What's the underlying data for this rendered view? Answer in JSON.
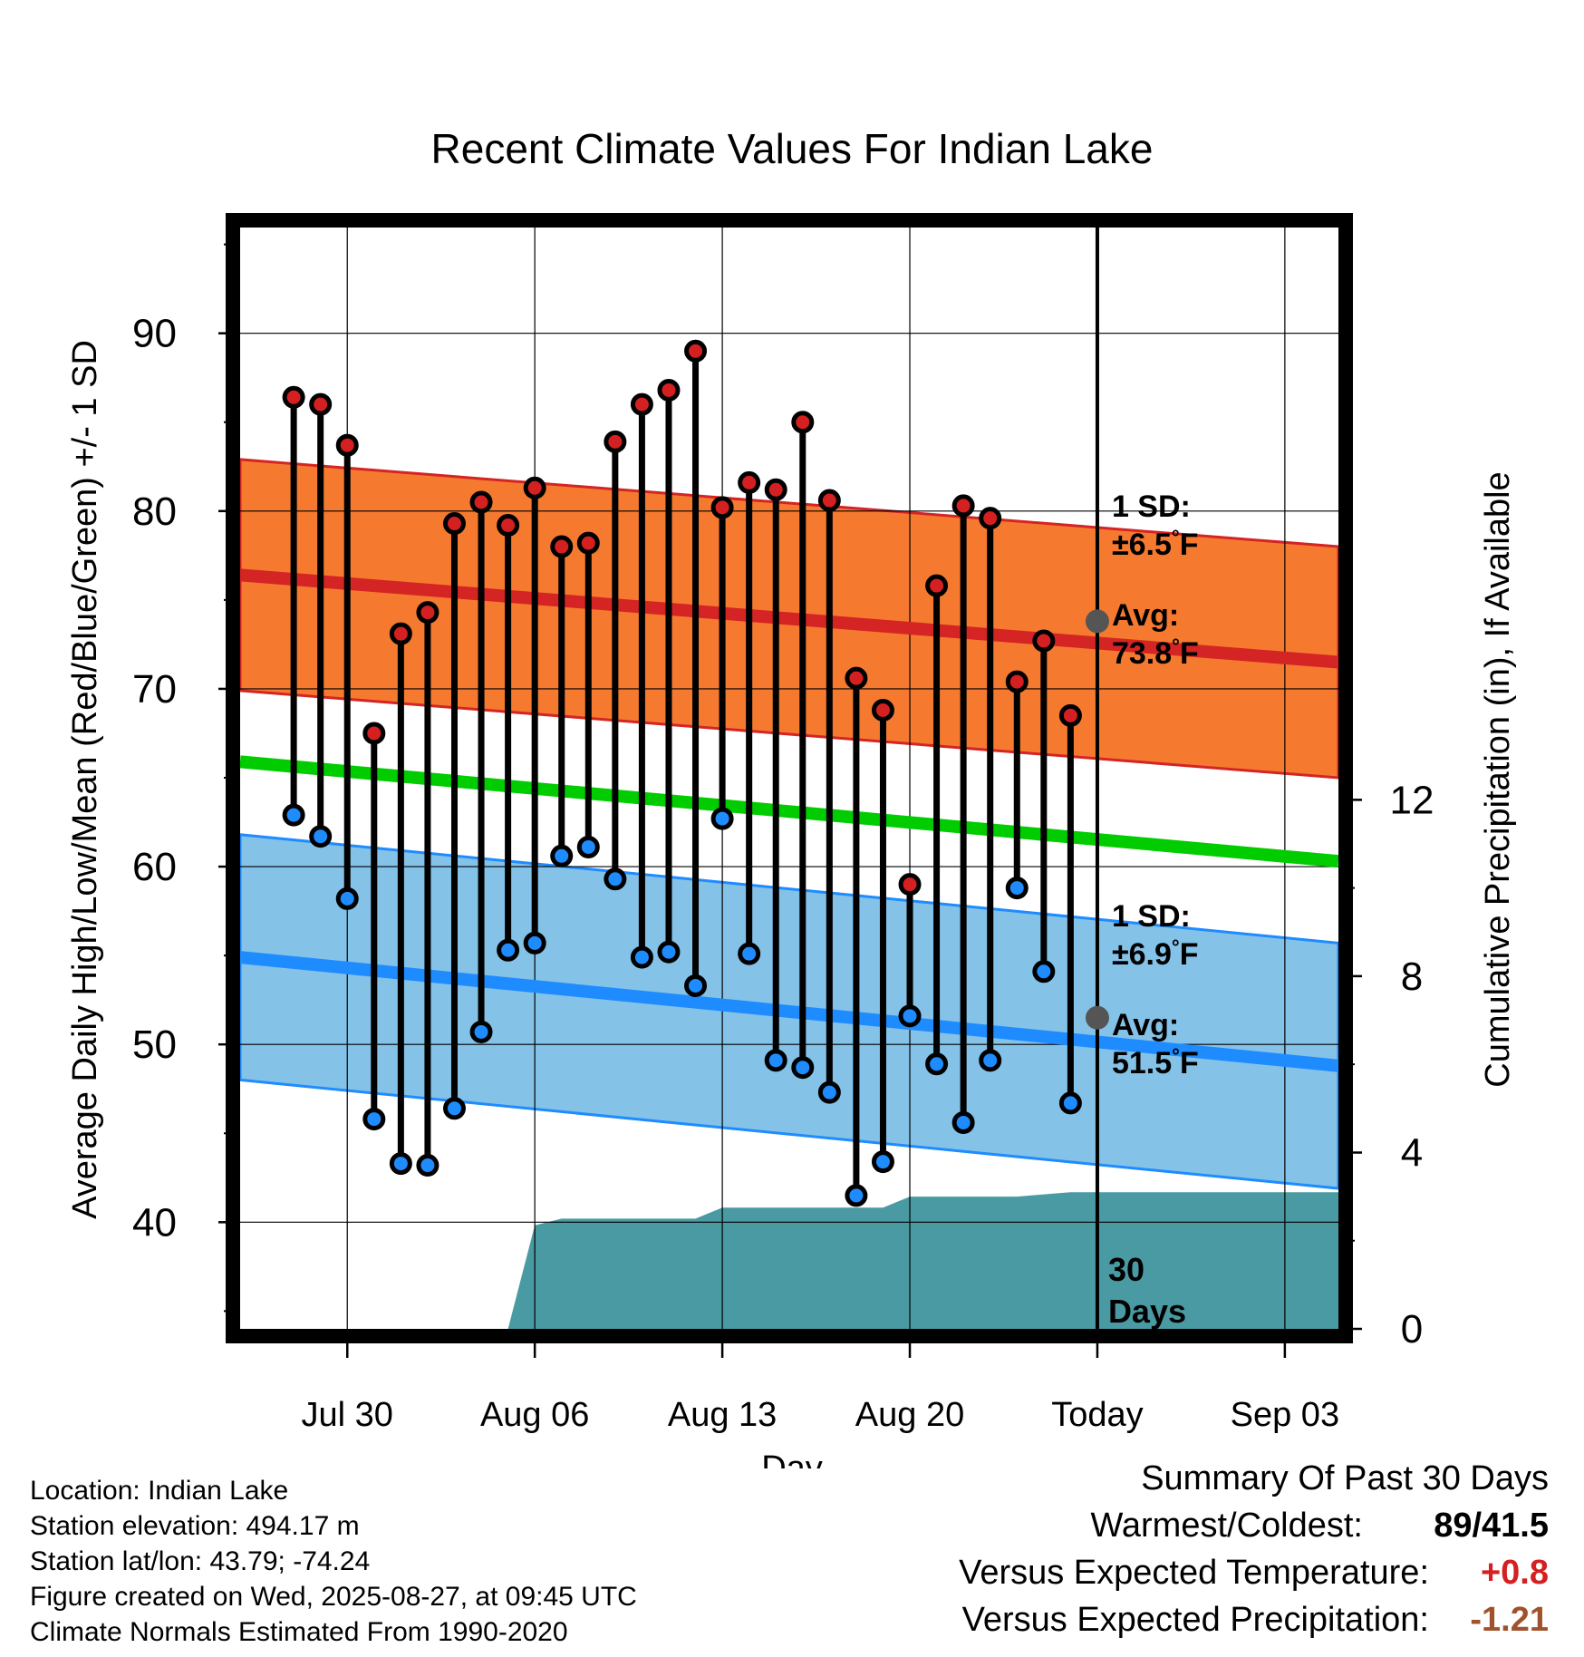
{
  "chart_data": {
    "type": "line",
    "title": "Recent Climate Values For Indian Lake",
    "xlabel": "Day",
    "ylabel": "Average Daily High/Low/Mean (Red/Blue/Green) +/- 1 SD",
    "y2label": "Cumulative Precipitation (in), If Available",
    "ylim": [
      34,
      96
    ],
    "y2lim": [
      0,
      25
    ],
    "xlim": [
      "Jul 26",
      "Sep 05"
    ],
    "yticks": [
      40,
      50,
      60,
      70,
      80,
      90
    ],
    "y2ticks": [
      0,
      4,
      8,
      12
    ],
    "xticks": [
      {
        "label": "Jul 30",
        "date": "Jul 30"
      },
      {
        "label": "Aug 06",
        "date": "Aug 06"
      },
      {
        "label": "Aug 13",
        "date": "Aug 13"
      },
      {
        "label": "Aug 20",
        "date": "Aug 20"
      },
      {
        "label": "Today",
        "date": "Aug 27"
      },
      {
        "label": "Sep 03",
        "date": "Sep 03"
      }
    ],
    "today": "Aug 27",
    "grid": true,
    "window_label": "30\nDays",
    "dates": [
      "Jul 28",
      "Jul 29",
      "Jul 30",
      "Jul 31",
      "Aug 01",
      "Aug 02",
      "Aug 03",
      "Aug 04",
      "Aug 05",
      "Aug 06",
      "Aug 07",
      "Aug 08",
      "Aug 09",
      "Aug 10",
      "Aug 11",
      "Aug 12",
      "Aug 13",
      "Aug 14",
      "Aug 15",
      "Aug 16",
      "Aug 17",
      "Aug 18",
      "Aug 19",
      "Aug 20",
      "Aug 21",
      "Aug 22",
      "Aug 23",
      "Aug 24",
      "Aug 25",
      "Aug 26"
    ],
    "daily_high": [
      86.4,
      86.0,
      83.7,
      67.5,
      73.1,
      74.3,
      79.3,
      80.5,
      79.2,
      81.3,
      78.0,
      78.2,
      83.9,
      86.0,
      86.8,
      89.0,
      80.2,
      81.6,
      81.2,
      85.0,
      80.6,
      70.6,
      68.8,
      59.0,
      75.8,
      80.3,
      79.6,
      70.4,
      72.7,
      68.5
    ],
    "daily_low": [
      62.9,
      61.7,
      58.2,
      45.8,
      43.3,
      43.2,
      46.4,
      50.7,
      55.3,
      55.7,
      60.6,
      61.1,
      59.3,
      54.9,
      55.2,
      53.3,
      62.7,
      55.1,
      49.1,
      48.7,
      47.3,
      41.5,
      43.4,
      51.6,
      48.9,
      45.6,
      49.1,
      58.8,
      54.1,
      46.7
    ],
    "normal_high": {
      "x": [
        "Jul 26",
        "Sep 05"
      ],
      "values": [
        76.4,
        71.5
      ]
    },
    "normal_high_sd": 6.5,
    "normal_low": {
      "x": [
        "Jul 26",
        "Sep 05"
      ],
      "values": [
        54.9,
        48.8
      ]
    },
    "normal_low_sd": 6.9,
    "normal_mean": {
      "x": [
        "Jul 26",
        "Sep 05"
      ],
      "values": [
        65.9,
        60.3
      ]
    },
    "precip_cumulative": {
      "x": [
        "Jul 26",
        "Aug 04",
        "Aug 05",
        "Aug 06",
        "Aug 07",
        "Aug 08",
        "Aug 09",
        "Aug 10",
        "Aug 11",
        "Aug 12",
        "Aug 13",
        "Aug 14",
        "Aug 15",
        "Aug 16",
        "Aug 17",
        "Aug 18",
        "Aug 19",
        "Aug 20",
        "Aug 21",
        "Aug 22",
        "Aug 23",
        "Aug 24",
        "Aug 25",
        "Aug 26",
        "Aug 27",
        "Sep 05"
      ],
      "values": [
        0,
        0,
        0,
        2.35,
        2.5,
        2.5,
        2.5,
        2.5,
        2.5,
        2.5,
        2.75,
        2.75,
        2.75,
        2.75,
        2.75,
        2.75,
        2.75,
        3.0,
        3.0,
        3.0,
        3.0,
        3.0,
        3.05,
        3.1,
        3.1,
        3.1
      ]
    },
    "high_annotation": {
      "sd": "1 SD:",
      "sd_value": "±6.5",
      "avg": "Avg:",
      "avg_value": "73.8",
      "unit": "°F",
      "avg_num": 73.8
    },
    "low_annotation": {
      "sd": "1 SD:",
      "sd_value": "±6.9",
      "avg": "Avg:",
      "avg_value": "51.5",
      "unit": "°F",
      "avg_num": 51.5
    },
    "colors": {
      "high_band": "#f57a30",
      "high_line": "#d42424",
      "low_band": "#85c2e8",
      "low_line": "#1e8cff",
      "mean_line": "#00cc00",
      "precip": "#4a9aa3",
      "high_marker": "#d42020",
      "low_marker": "#1e8cff",
      "annotation": "#555555"
    }
  },
  "info": {
    "location": "Location: Indian Lake",
    "elevation": "Station elevation: 494.17 m",
    "latlon": "Station lat/lon: 43.79; -74.24",
    "created": "Figure created on Wed, 2025-08-27, at 09:45 UTC",
    "normals": "Climate Normals Estimated From 1990-2020"
  },
  "summary": {
    "title": "Summary Of Past 30 Days",
    "warmest_label": "Warmest/Coldest:",
    "warmest_value": "89/41.5",
    "temp_label": "Versus Expected Temperature:",
    "temp_value": "+0.8",
    "temp_color": "#d42020",
    "precip_label": "Versus Expected Precipitation:",
    "precip_value": "-1.21",
    "precip_color": "#a0522d"
  }
}
